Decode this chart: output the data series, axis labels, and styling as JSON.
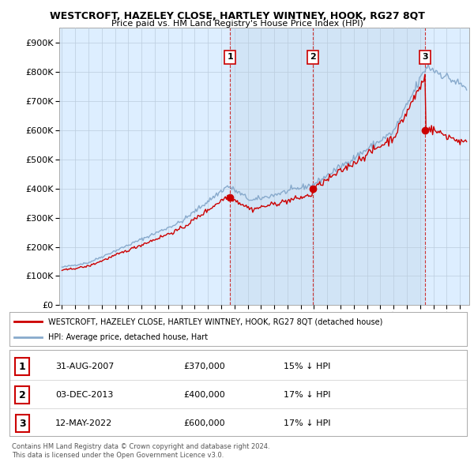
{
  "title": "WESTCROFT, HAZELEY CLOSE, HARTLEY WINTNEY, HOOK, RG27 8QT",
  "subtitle": "Price paid vs. HM Land Registry's House Price Index (HPI)",
  "legend_line1": "WESTCROFT, HAZELEY CLOSE, HARTLEY WINTNEY, HOOK, RG27 8QT (detached house)",
  "legend_line2": "HPI: Average price, detached house, Hart",
  "footer1": "Contains HM Land Registry data © Crown copyright and database right 2024.",
  "footer2": "This data is licensed under the Open Government Licence v3.0.",
  "sale_color": "#cc0000",
  "hpi_color": "#88aadd",
  "shade_color": "#ddeeff",
  "background_color": "#ddeeff",
  "plot_bg_color": "#ffffff",
  "ylim": [
    0,
    950000
  ],
  "yticks": [
    0,
    100000,
    200000,
    300000,
    400000,
    500000,
    600000,
    700000,
    800000,
    900000
  ],
  "sales": [
    {
      "date_num": 2007.67,
      "price": 370000,
      "label": "1"
    },
    {
      "date_num": 2013.92,
      "price": 400000,
      "label": "2"
    },
    {
      "date_num": 2022.37,
      "price": 600000,
      "label": "3"
    }
  ],
  "table_rows": [
    {
      "num": "1",
      "date": "31-AUG-2007",
      "price": "£370,000",
      "hpi": "15% ↓ HPI"
    },
    {
      "num": "2",
      "date": "03-DEC-2013",
      "price": "£400,000",
      "hpi": "17% ↓ HPI"
    },
    {
      "num": "3",
      "date": "12-MAY-2022",
      "price": "£600,000",
      "hpi": "17% ↓ HPI"
    }
  ],
  "xmin": 1994.8,
  "xmax": 2025.7
}
